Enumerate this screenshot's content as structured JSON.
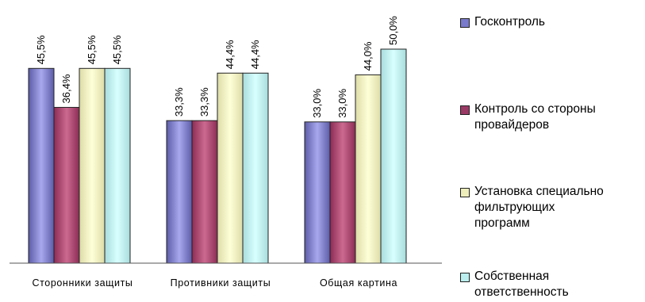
{
  "colors": {
    "series": [
      "#5c5ca8",
      "#8c2c55",
      "#dcdca8",
      "#a8dcdc"
    ],
    "series_light": [
      "#a8a8ee",
      "#cc6a90",
      "#ffffd8",
      "#d8ffff"
    ],
    "axis": "#555555"
  },
  "legend": {
    "items": [
      "Госконтроль",
      "Контроль со стороны\nпровайдеров",
      "Установка специально\nфильтрующих\nпрограмм",
      "Собственная\nответственность"
    ]
  },
  "chart_data": {
    "type": "bar",
    "title": "",
    "xlabel": "",
    "ylabel": "",
    "ylim": [
      0,
      60
    ],
    "grid": false,
    "legend_position": "right",
    "categories": [
      "Сторонники защиты",
      "Противники защиты",
      "Общая картина"
    ],
    "series": [
      {
        "name": "Госконтроль",
        "values": [
          45.5,
          33.3,
          33.0
        ],
        "labels": [
          "45,5%",
          "33,3%",
          "33,0%"
        ]
      },
      {
        "name": "Контроль со стороны провайдеров",
        "values": [
          36.4,
          33.3,
          33.0
        ],
        "labels": [
          "36,4%",
          "33,3%",
          "33,0%"
        ]
      },
      {
        "name": "Установка специально фильтрующих программ",
        "values": [
          45.5,
          44.4,
          44.0
        ],
        "labels": [
          "45,5%",
          "44,4%",
          "44,0%"
        ]
      },
      {
        "name": "Собственная ответственность",
        "values": [
          45.5,
          44.4,
          50.0
        ],
        "labels": [
          "45,5%",
          "44,4%",
          "50,0%"
        ]
      }
    ]
  }
}
